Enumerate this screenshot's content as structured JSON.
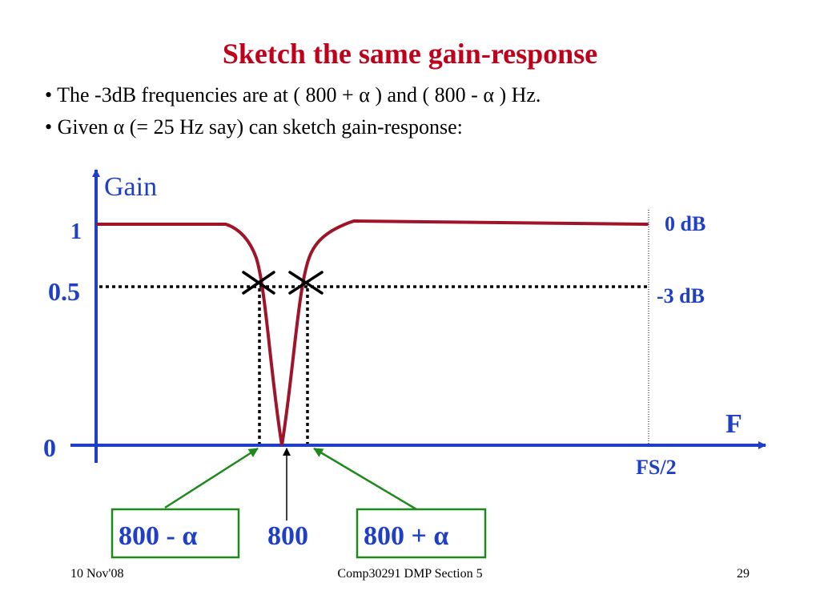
{
  "slide": {
    "title": "Sketch the same gain-response",
    "bullets": [
      "• The -3dB frequencies are at  ( 800 + α ) and ( 800 - α ) Hz.",
      "• Given α (= 25 Hz say) can sketch gain-response:"
    ],
    "footer": {
      "date": "10 Nov'08",
      "course": "Comp30291 DMP Section 5",
      "page": "29"
    }
  },
  "diagram": {
    "gain_axis_label": "Gain",
    "freq_axis_label": "F",
    "tick_1": "1",
    "tick_half": "0.5",
    "tick_0": "0",
    "label_0db": "0 dB",
    "label_3db": "-3 dB",
    "label_fs2": "FS/2",
    "box_left": "800 - α",
    "center_label": "800",
    "box_right": "800 + α"
  },
  "colors": {
    "title": "#c0001a",
    "axis": "#1f3fc8",
    "curve": "#a0142a",
    "arrow_green": "#1e8a1e",
    "text_blue": "#1f3fc8",
    "text_black": "#000000"
  }
}
